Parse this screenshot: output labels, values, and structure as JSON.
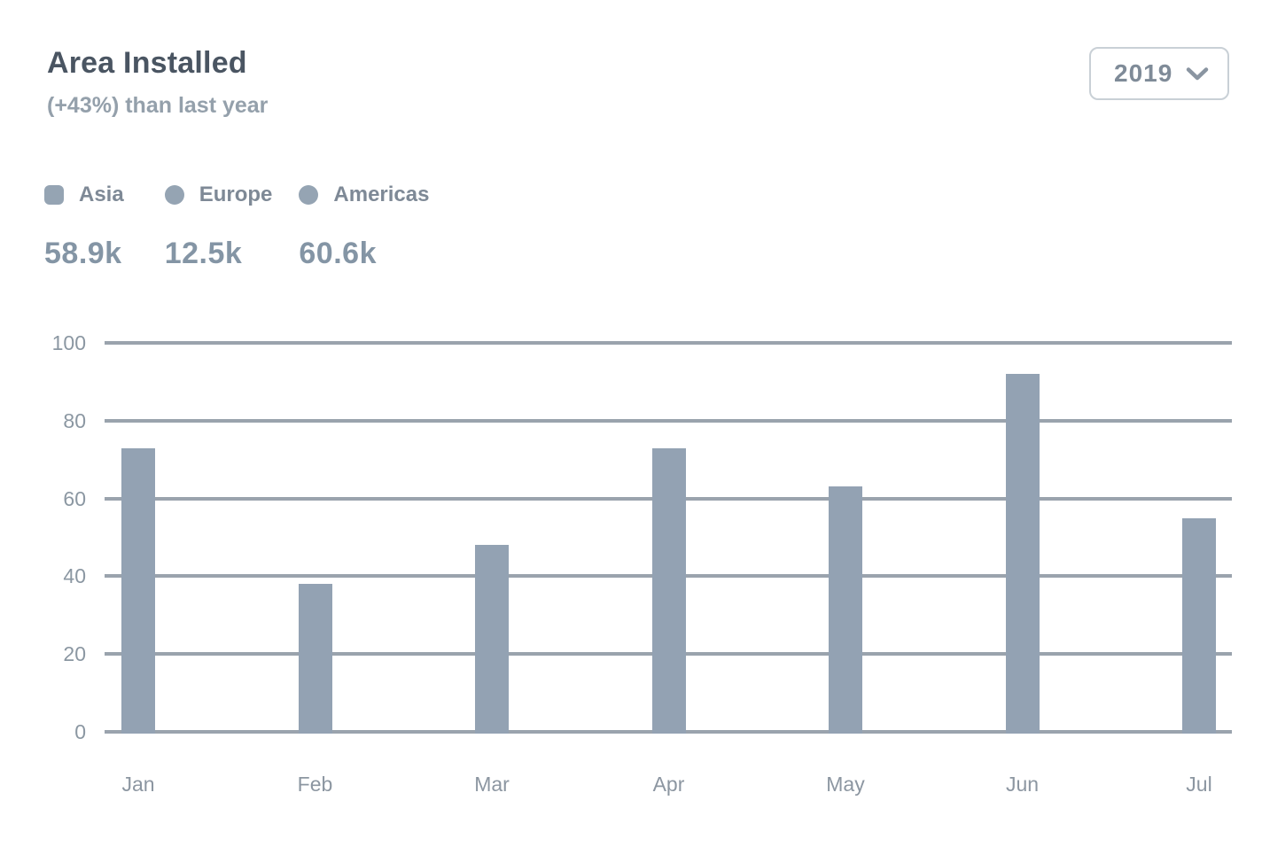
{
  "header": {
    "title": "Area Installed",
    "subtitle": "(+43%) than last year",
    "year_select": {
      "value": "2019",
      "icon": "chevron-down-icon"
    }
  },
  "legend": {
    "items": [
      {
        "label": "Asia",
        "value": "58.9k",
        "marker_color": "#95a4b3"
      },
      {
        "label": "Europe",
        "value": "12.5k",
        "marker_color": "#95a4b3"
      },
      {
        "label": "Americas",
        "value": "60.6k",
        "marker_color": "#95a4b3"
      }
    ]
  },
  "chart_data": {
    "type": "bar",
    "title": "Area Installed",
    "categories": [
      "Jan",
      "Feb",
      "Mar",
      "Apr",
      "May",
      "Jun",
      "Jul"
    ],
    "values": [
      73,
      38,
      48,
      73,
      63,
      92,
      55
    ],
    "series_name": "Area installed",
    "xlabel": "",
    "ylabel": "",
    "ylim": [
      0,
      100
    ],
    "yticks": [
      0,
      20,
      40,
      60,
      80,
      100
    ],
    "grid": "horizontal",
    "legend_position": "top-left",
    "bar_color": "#93a2b3",
    "gridline_color": "#9aa3ad"
  },
  "colors": {
    "card_bg": "#ffffff",
    "title": "#4a5562",
    "subtitle": "#94a0ab",
    "legend_label": "#7e8996",
    "legend_value": "#8495a5",
    "axis_label": "#8c96a1",
    "accent": "#93a2b3"
  }
}
